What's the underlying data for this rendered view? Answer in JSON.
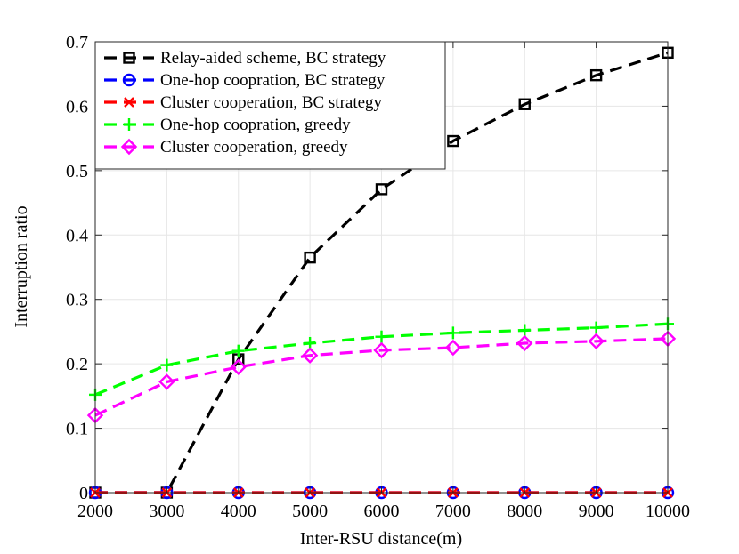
{
  "chart_data": {
    "type": "line",
    "title": "",
    "xlabel": "Inter-RSU distance(m)",
    "ylabel": "Interruption ratio",
    "x": [
      2000,
      3000,
      4000,
      5000,
      6000,
      7000,
      8000,
      9000,
      10000
    ],
    "xlim": [
      2000,
      10000
    ],
    "ylim": [
      0,
      0.7
    ],
    "xticks": [
      "2000",
      "3000",
      "4000",
      "5000",
      "6000",
      "7000",
      "8000",
      "9000",
      "10000"
    ],
    "yticks": [
      "0",
      "0.1",
      "0.2",
      "0.3",
      "0.4",
      "0.5",
      "0.6",
      "0.7"
    ],
    "grid": true,
    "legend_position": "top-left",
    "series": [
      {
        "name": "Relay-aided scheme, BC strategy",
        "color": "#000000",
        "marker": "square",
        "values": [
          0,
          0,
          0.207,
          0.365,
          0.471,
          0.546,
          0.603,
          0.648,
          0.683
        ]
      },
      {
        "name": "One-hop coopration, BC strategy",
        "color": "#0000ff",
        "marker": "circle",
        "values": [
          0,
          0,
          0,
          0,
          0,
          0,
          0,
          0,
          0
        ]
      },
      {
        "name": "Cluster cooperation, BC strategy",
        "color": "#ff0000",
        "marker": "x",
        "values": [
          0,
          0,
          0,
          0,
          0,
          0,
          0,
          0,
          0
        ]
      },
      {
        "name": "One-hop coopration, greedy",
        "color": "#00ff00",
        "marker": "plus",
        "values": [
          0.152,
          0.198,
          0.22,
          0.232,
          0.242,
          0.248,
          0.252,
          0.256,
          0.262
        ]
      },
      {
        "name": "Cluster cooperation, greedy",
        "color": "#ff00ff",
        "marker": "diamond",
        "values": [
          0.12,
          0.172,
          0.195,
          0.213,
          0.221,
          0.225,
          0.232,
          0.235,
          0.239
        ]
      }
    ]
  }
}
